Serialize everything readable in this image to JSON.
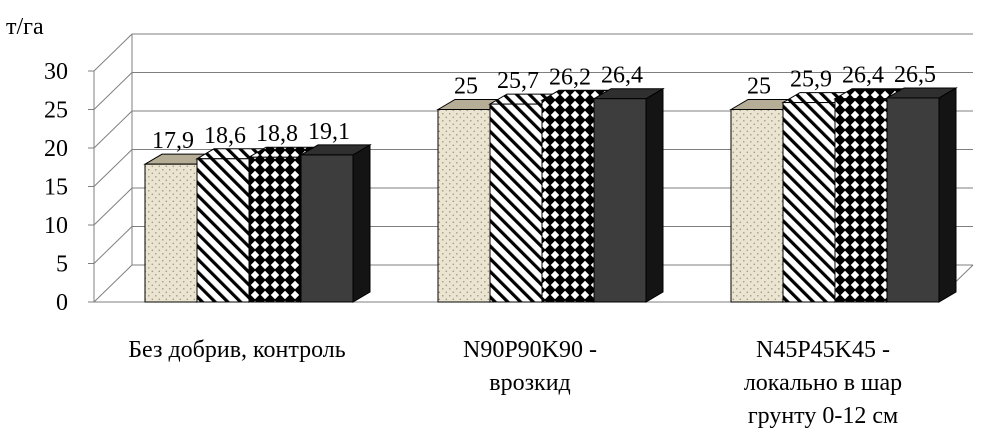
{
  "chart_data": {
    "type": "bar",
    "unit_label": "т/га",
    "categories": [
      [
        "Без добрив, контроль"
      ],
      [
        "N90P90K90  -",
        "врозкид"
      ],
      [
        "N45P45K45 -",
        "локально в шар",
        "грунту 0-12 см"
      ]
    ],
    "series": [
      {
        "values": [
          17.9,
          25,
          25
        ],
        "labels": [
          "17,9",
          "25",
          "25"
        ],
        "pattern": "dots",
        "color": "#e9e3cf"
      },
      {
        "values": [
          18.6,
          25.7,
          25.9
        ],
        "labels": [
          "18,6",
          "25,7",
          "25,9"
        ],
        "pattern": "diagonal",
        "color": "#ffffff"
      },
      {
        "values": [
          18.8,
          26.2,
          26.4
        ],
        "labels": [
          "18,8",
          "26,2",
          "26,4"
        ],
        "pattern": "diamonds",
        "color": "#000000"
      },
      {
        "values": [
          19.1,
          26.4,
          26.5
        ],
        "labels": [
          "19,1",
          "26,4",
          "26,5"
        ],
        "pattern": "solid",
        "color": "#3f3f3f"
      }
    ],
    "yticks": [
      "0",
      "5",
      "10",
      "15",
      "20",
      "25",
      "30"
    ],
    "ylim": [
      0,
      30
    ],
    "grid": true,
    "three_d": true,
    "legend": "none"
  }
}
